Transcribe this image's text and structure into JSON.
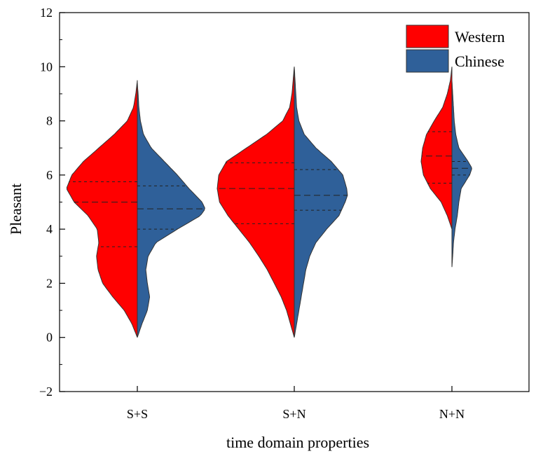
{
  "chart_data": {
    "type": "split-violin",
    "xlabel": "time domain properties",
    "ylabel": "Pleasant",
    "ylim": [
      -2,
      12
    ],
    "yticks": [
      -2,
      0,
      2,
      4,
      6,
      8,
      10,
      12
    ],
    "categories": [
      "S+S",
      "S+N",
      "N+N"
    ],
    "legend_position": "top-right",
    "grid": false,
    "series": [
      {
        "name": "Western",
        "color": "#ff0000",
        "groups": [
          {
            "category": "S+S",
            "range": [
              0,
              9.5
            ],
            "quartiles": [
              3.35,
              5.0,
              5.75
            ],
            "profile": [
              [
                0,
                0.0
              ],
              [
                0.5,
                0.07
              ],
              [
                1,
                0.17
              ],
              [
                1.5,
                0.32
              ],
              [
                2,
                0.45
              ],
              [
                2.5,
                0.51
              ],
              [
                3,
                0.53
              ],
              [
                3.5,
                0.5
              ],
              [
                4,
                0.52
              ],
              [
                4.5,
                0.64
              ],
              [
                5,
                0.82
              ],
              [
                5.5,
                0.92
              ],
              [
                6,
                0.85
              ],
              [
                6.5,
                0.7
              ],
              [
                7,
                0.5
              ],
              [
                7.5,
                0.3
              ],
              [
                8,
                0.13
              ],
              [
                8.5,
                0.05
              ],
              [
                9,
                0.02
              ],
              [
                9.5,
                0.0
              ]
            ]
          },
          {
            "category": "S+N",
            "range": [
              0,
              10
            ],
            "quartiles": [
              4.2,
              5.5,
              6.45
            ],
            "profile": [
              [
                0,
                0.0
              ],
              [
                0.5,
                0.05
              ],
              [
                1,
                0.1
              ],
              [
                1.5,
                0.17
              ],
              [
                2,
                0.26
              ],
              [
                2.5,
                0.35
              ],
              [
                3,
                0.46
              ],
              [
                3.5,
                0.58
              ],
              [
                4,
                0.72
              ],
              [
                4.5,
                0.86
              ],
              [
                5,
                0.97
              ],
              [
                5.5,
                1.0
              ],
              [
                6,
                0.98
              ],
              [
                6.5,
                0.88
              ],
              [
                7,
                0.62
              ],
              [
                7.5,
                0.36
              ],
              [
                8,
                0.15
              ],
              [
                8.5,
                0.06
              ],
              [
                9,
                0.03
              ],
              [
                9.5,
                0.015
              ],
              [
                10,
                0.0
              ]
            ]
          },
          {
            "category": "N+N",
            "range": [
              4.0,
              10
            ],
            "quartiles": [
              5.7,
              6.7,
              7.6
            ],
            "profile": [
              [
                4.0,
                0.0
              ],
              [
                4.5,
                0.06
              ],
              [
                5,
                0.14
              ],
              [
                5.5,
                0.28
              ],
              [
                6,
                0.37
              ],
              [
                6.5,
                0.4
              ],
              [
                7,
                0.38
              ],
              [
                7.5,
                0.33
              ],
              [
                8,
                0.23
              ],
              [
                8.5,
                0.12
              ],
              [
                9,
                0.06
              ],
              [
                9.5,
                0.02
              ],
              [
                10,
                0.0
              ]
            ]
          }
        ]
      },
      {
        "name": "Chinese",
        "color": "#2f6099",
        "groups": [
          {
            "category": "S+S",
            "range": [
              0,
              9.4
            ],
            "quartiles": [
              4.0,
              4.75,
              5.6
            ],
            "profile": [
              [
                0,
                0.0
              ],
              [
                0.5,
                0.06
              ],
              [
                1,
                0.13
              ],
              [
                1.5,
                0.16
              ],
              [
                2,
                0.13
              ],
              [
                2.5,
                0.11
              ],
              [
                3,
                0.14
              ],
              [
                3.5,
                0.24
              ],
              [
                4,
                0.52
              ],
              [
                4.5,
                0.82
              ],
              [
                4.75,
                0.88
              ],
              [
                5,
                0.84
              ],
              [
                5.5,
                0.67
              ],
              [
                6,
                0.52
              ],
              [
                6.5,
                0.35
              ],
              [
                7,
                0.18
              ],
              [
                7.5,
                0.08
              ],
              [
                8,
                0.04
              ],
              [
                8.5,
                0.02
              ],
              [
                9,
                0.01
              ],
              [
                9.4,
                0.0
              ]
            ]
          },
          {
            "category": "S+N",
            "range": [
              0,
              10
            ],
            "quartiles": [
              4.7,
              5.25,
              6.2
            ],
            "profile": [
              [
                0,
                0.0
              ],
              [
                0.5,
                0.03
              ],
              [
                1,
                0.06
              ],
              [
                1.5,
                0.09
              ],
              [
                2,
                0.12
              ],
              [
                2.5,
                0.15
              ],
              [
                3,
                0.2
              ],
              [
                3.5,
                0.28
              ],
              [
                4,
                0.42
              ],
              [
                4.5,
                0.58
              ],
              [
                5,
                0.66
              ],
              [
                5.25,
                0.69
              ],
              [
                5.5,
                0.68
              ],
              [
                6,
                0.63
              ],
              [
                6.5,
                0.48
              ],
              [
                7,
                0.28
              ],
              [
                7.5,
                0.13
              ],
              [
                8,
                0.06
              ],
              [
                8.5,
                0.03
              ],
              [
                9,
                0.02
              ],
              [
                9.5,
                0.01
              ],
              [
                10,
                0.0
              ]
            ]
          },
          {
            "category": "N+N",
            "range": [
              2.6,
              9.5
            ],
            "quartiles": [
              6.0,
              6.25,
              6.5
            ],
            "profile": [
              [
                2.6,
                0.0
              ],
              [
                3,
                0.01
              ],
              [
                3.5,
                0.02
              ],
              [
                4,
                0.04
              ],
              [
                4.5,
                0.07
              ],
              [
                5,
                0.09
              ],
              [
                5.5,
                0.12
              ],
              [
                6,
                0.23
              ],
              [
                6.25,
                0.26
              ],
              [
                6.5,
                0.21
              ],
              [
                7,
                0.09
              ],
              [
                7.5,
                0.05
              ],
              [
                8,
                0.03
              ],
              [
                8.5,
                0.02
              ],
              [
                9,
                0.01
              ],
              [
                9.5,
                0.0
              ]
            ]
          }
        ]
      }
    ]
  }
}
